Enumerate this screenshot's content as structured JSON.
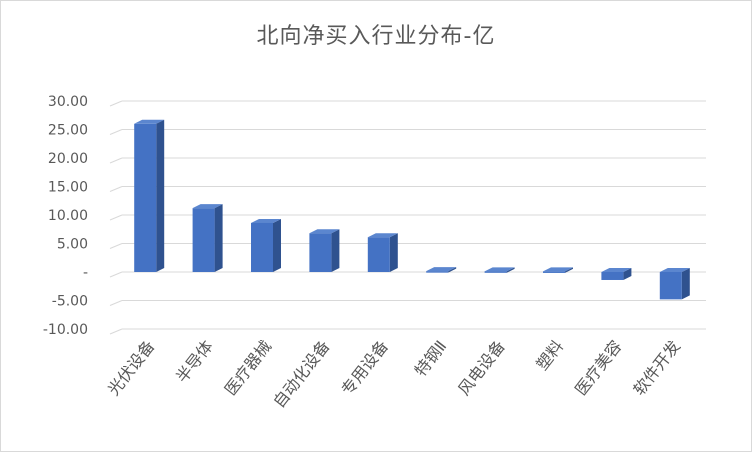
{
  "chart_data": {
    "type": "bar",
    "title": "北向净买入行业分布-亿",
    "categories": [
      "光伏设备",
      "半导体",
      "医疗器械",
      "自动化设备",
      "专用设备",
      "特钢Ⅱ",
      "风电设备",
      "塑料",
      "医疗美容",
      "软件开发"
    ],
    "values": [
      26.0,
      11.2,
      8.6,
      6.8,
      6.1,
      0.15,
      0.12,
      0.1,
      -1.4,
      -4.8
    ],
    "ylim": [
      -10,
      30
    ],
    "yticks": [
      "-10.00",
      "-5.00",
      "-",
      "5.00",
      "10.00",
      "15.00",
      "20.00",
      "25.00",
      "30.00"
    ],
    "xlabel": "",
    "ylabel": "",
    "grid": true,
    "bar_color": "#4472c4",
    "bar_side_color": "#2f528f",
    "bar_top_color": "#5b86cf"
  }
}
